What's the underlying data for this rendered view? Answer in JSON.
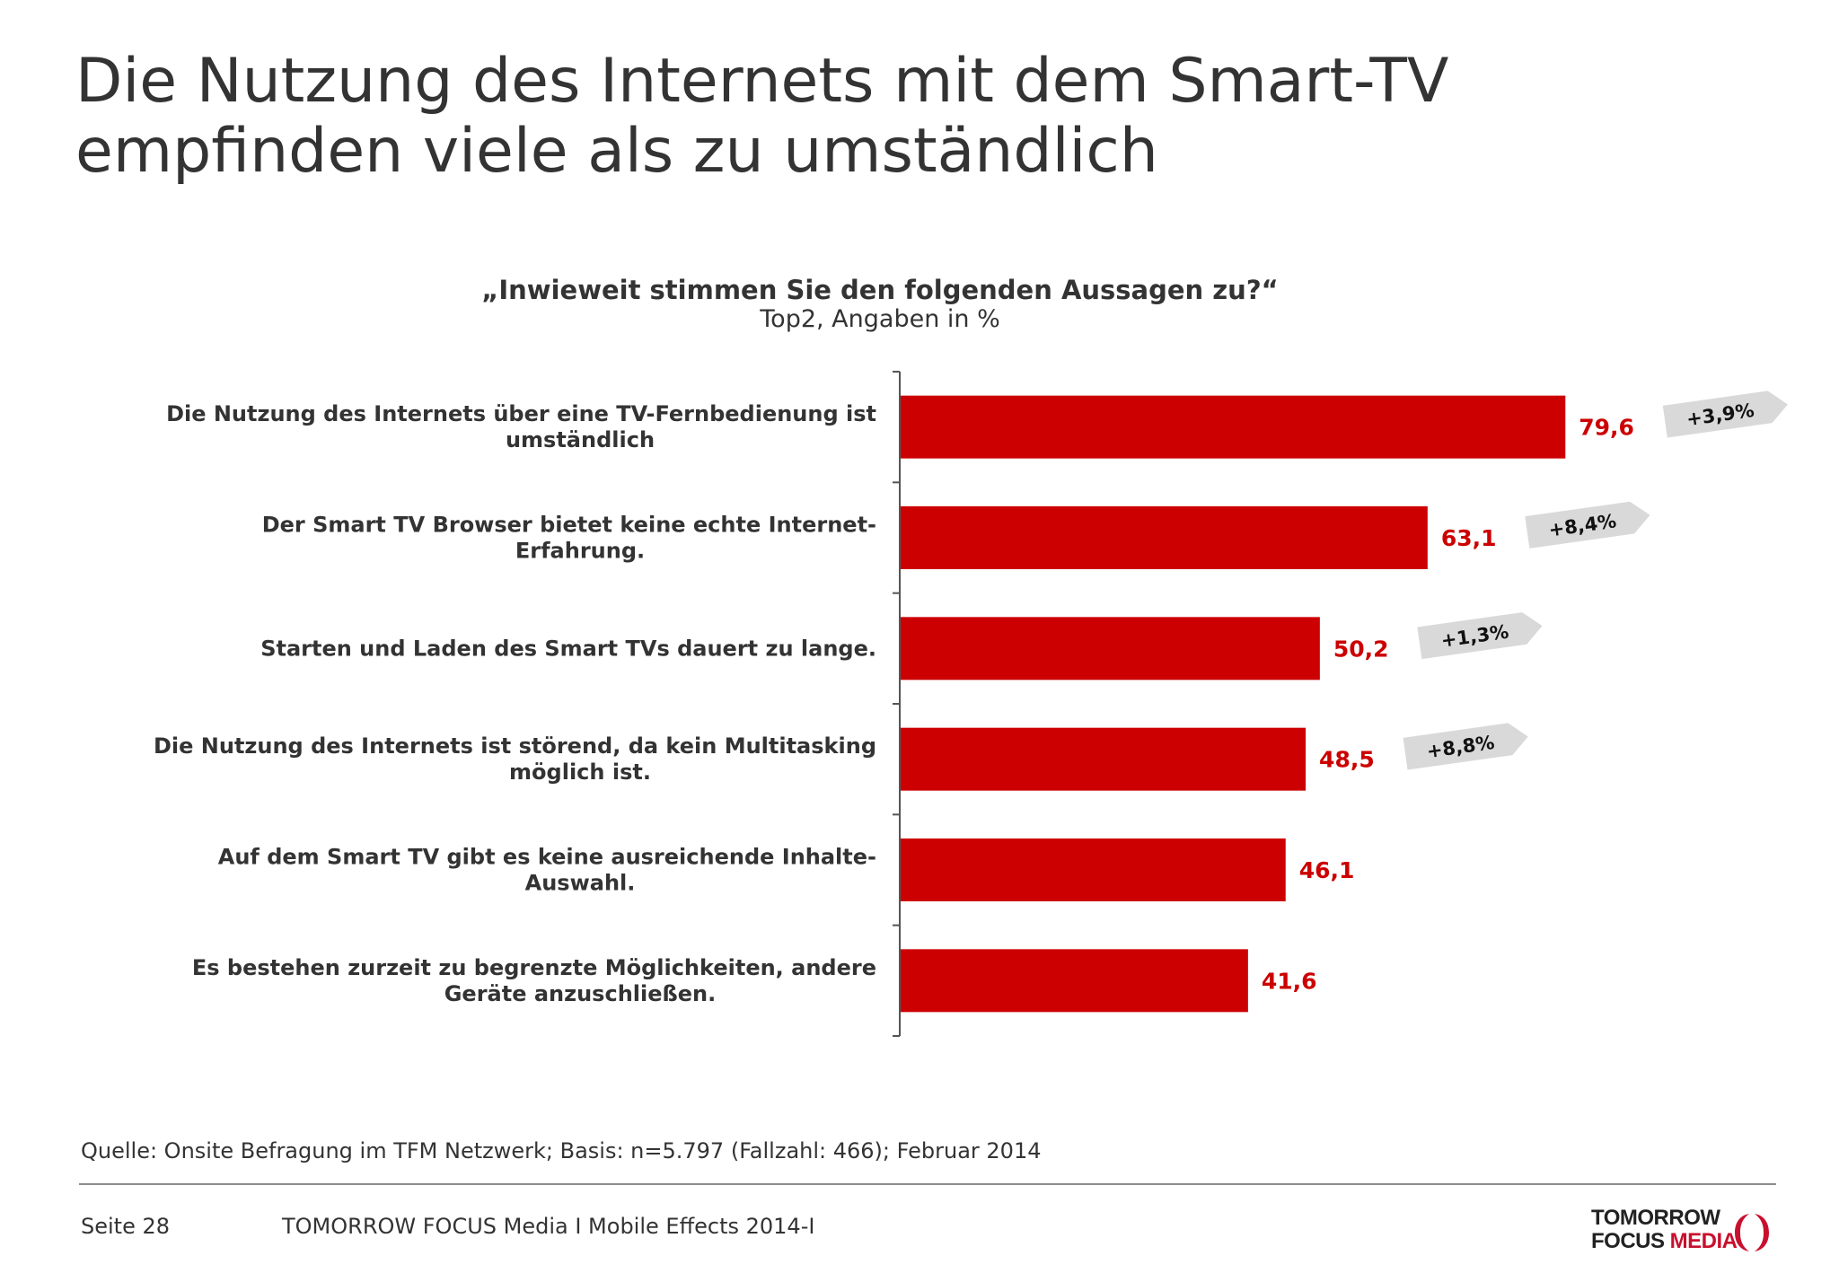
{
  "title": "Die Nutzung des Internets mit dem Smart-TV empfinden viele als zu umständlich",
  "question": "„Inwieweit stimmen Sie den folgenden Aussagen zu?“",
  "subquestion": "Top2, Angaben in %",
  "chart_data": {
    "type": "bar",
    "orientation": "horizontal",
    "title": "„Inwieweit stimmen Sie den folgenden Aussagen zu?“",
    "subtitle": "Top2, Angaben in %",
    "categories": [
      [
        "Die Nutzung des Internets über eine TV-Fernbedienung ist",
        "umständlich"
      ],
      [
        "Der Smart TV Browser bietet keine echte Internet-",
        "Erfahrung."
      ],
      [
        "Starten und Laden des Smart TVs dauert zu lange."
      ],
      [
        "Die Nutzung des Internets ist störend, da kein Multitasking",
        "möglich ist."
      ],
      [
        "Auf dem Smart TV gibt es keine ausreichende Inhalte-",
        "Auswahl."
      ],
      [
        "Es bestehen zurzeit zu begrenzte Möglichkeiten, andere",
        "Geräte anzuschließen."
      ]
    ],
    "values": [
      79.6,
      63.1,
      50.2,
      48.5,
      46.1,
      41.6
    ],
    "value_labels": [
      "79,6",
      "63,1",
      "50,2",
      "48,5",
      "46,1",
      "41,6"
    ],
    "changes": [
      "+3,9%",
      "+8,4%",
      "+1,3%",
      "+8,8%",
      null,
      null
    ],
    "xlim": [
      0,
      100
    ],
    "grid": false,
    "colors": {
      "bar": "#cc0000",
      "value_text": "#cc0000",
      "change_tag": "#d9d9d9",
      "axis": "#555555"
    }
  },
  "footer": {
    "source": "Quelle: Onsite Befragung im TFM Netzwerk; Basis: n=5.797 (Fallzahl: 466); Februar 2014",
    "page": "Seite 28",
    "publication": "TOMORROW FOCUS Media  I  Mobile Effects 2014-I"
  },
  "logo": {
    "line1": "TOMORROW",
    "line2a": "FOCUS",
    "line2b": "MEDIA"
  }
}
